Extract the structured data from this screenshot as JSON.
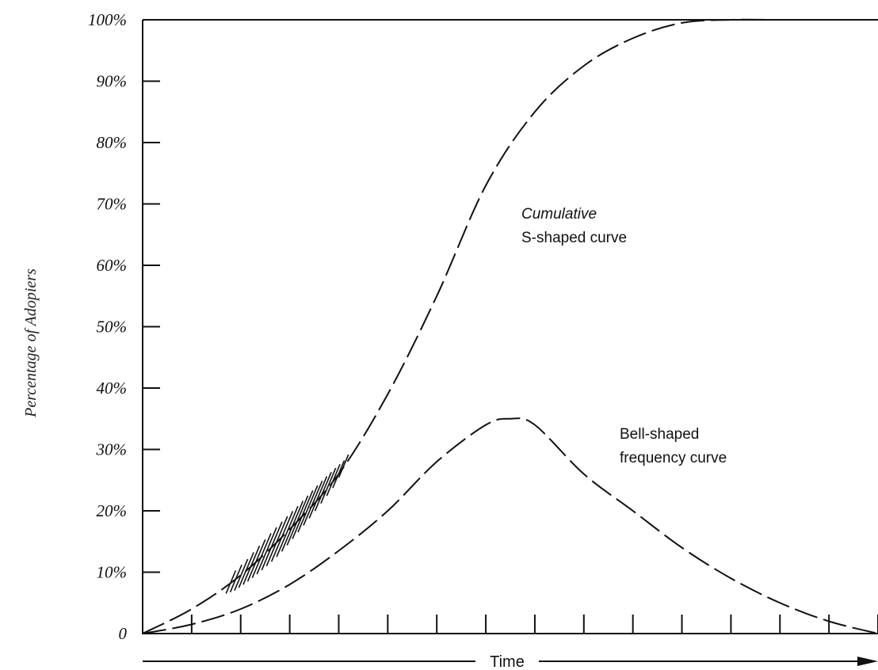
{
  "chart_data": {
    "type": "line",
    "ylabel": "Percentage of Adopiers",
    "xlabel": "Time",
    "ylim": [
      0,
      100
    ],
    "y_ticks": [
      "0",
      "10%",
      "20%",
      "30%",
      "40%",
      "50%",
      "60%",
      "70%",
      "80%",
      "90%",
      "100%"
    ],
    "x_tick_count": 15,
    "grid": false,
    "line_style": "dashed",
    "series": [
      {
        "label_lines": [
          "Cumulative",
          "S-shaped curve"
        ],
        "x": [
          0,
          1,
          2,
          3,
          4,
          5,
          6,
          7,
          8,
          9,
          10,
          11,
          12,
          13,
          14,
          15
        ],
        "values": [
          0,
          4,
          9.5,
          17,
          26,
          39,
          55,
          73,
          85,
          92.5,
          97,
          99.5,
          100,
          100,
          100,
          100
        ]
      },
      {
        "label_lines": [
          "Bell-shaped",
          "frequency curve"
        ],
        "x": [
          0,
          1,
          2,
          3,
          4,
          5,
          6,
          7,
          7.5,
          8,
          9,
          10,
          11,
          12,
          13,
          14,
          15
        ],
        "values": [
          0,
          1.5,
          4,
          8,
          13.5,
          20,
          28,
          34,
          35,
          34,
          26,
          20,
          14,
          9,
          5,
          2,
          0
        ]
      }
    ],
    "shaded_region": {
      "x_start": 1.8,
      "x_end": 4.1,
      "description_visible": false
    }
  }
}
